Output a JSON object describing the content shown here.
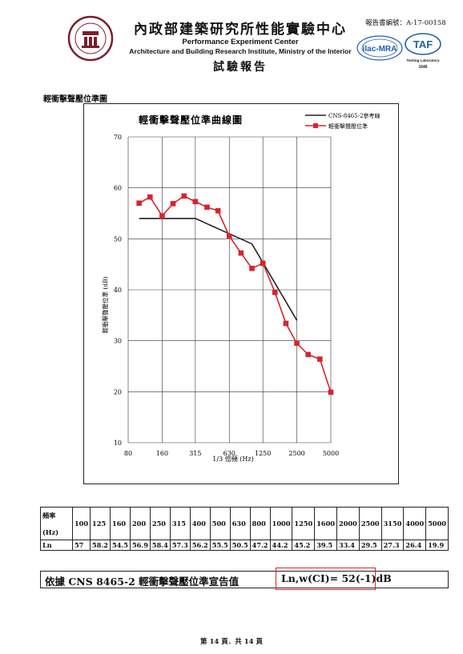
{
  "header": {
    "institute_zh": "內政部建築研究所性能實驗中心",
    "institute_en_line1": "Performance Experiment Center",
    "institute_en_line2": "Architecture and Building Research Institute, Ministry of the Interior",
    "report_title": "試驗報告",
    "report_number_label": "報告書編號：A-17-00158",
    "logos": {
      "institute": "abri-seal-logo",
      "ilac": "ilac-mra-logo",
      "taf": "taf-logo",
      "ilac_text": "ilac-MRA",
      "taf_text": "TAF",
      "taf_sub1": "Testing Laboratory",
      "taf_sub2": "1646"
    }
  },
  "section_title": "輕衝擊聲壓位準圖",
  "chart_data": {
    "type": "line",
    "title": "輕衝擊聲壓位準曲線圖",
    "xlabel": "1/3 倍頻 (Hz)",
    "ylabel": "輕衝擊聲壓位準 (dB)",
    "x_tick_labels": [
      "80",
      "160",
      "315",
      "630",
      "1250",
      "2500",
      "5000"
    ],
    "y_tick_labels": [
      "10",
      "20",
      "30",
      "40",
      "50",
      "60",
      "70"
    ],
    "ylim": [
      10,
      70
    ],
    "categories": [
      "100",
      "125",
      "160",
      "200",
      "250",
      "315",
      "400",
      "500",
      "630",
      "800",
      "1000",
      "1250",
      "1600",
      "2000",
      "2500",
      "3150",
      "4000",
      "5000"
    ],
    "series": [
      {
        "name": "CNS-8465-2參考線",
        "color": "#222222",
        "marker": "none",
        "points": [
          [
            100,
            54
          ],
          [
            315,
            54
          ],
          [
            1000,
            49
          ],
          [
            2500,
            34
          ]
        ]
      },
      {
        "name": "輕衝擊聲壓位準",
        "color": "#d9232d",
        "marker": "square",
        "values": [
          57,
          58.2,
          54.5,
          56.9,
          58.4,
          57.3,
          56.2,
          55.5,
          50.5,
          47.2,
          44.2,
          45.2,
          39.5,
          33.4,
          29.5,
          27.3,
          26.4,
          19.9
        ]
      }
    ],
    "grid": true,
    "legend": "top-right"
  },
  "table": {
    "freq_label_1": "頻率",
    "freq_label_2": "(Hz)",
    "level_label": "Ln",
    "frequencies": [
      "100",
      "125",
      "160",
      "200",
      "250",
      "315",
      "400",
      "500",
      "630",
      "800",
      "1000",
      "1250",
      "1600",
      "2000",
      "2500",
      "3150",
      "4000",
      "5000"
    ],
    "levels": [
      "57",
      "58.2",
      "54.5",
      "56.9",
      "58.4",
      "57.3",
      "56.2",
      "55.5",
      "50.5",
      "47.2",
      "44.2",
      "45.2",
      "39.5",
      "33.4",
      "29.5",
      "27.3",
      "26.4",
      "19.9"
    ]
  },
  "declaration": {
    "text": "依據 CNS 8465-2 輕衝擊聲壓位準宣告值",
    "value": "Ln,w(CI)= 52(-1)dB"
  },
  "footer": {
    "page": "第 14 頁．共 14 頁"
  }
}
